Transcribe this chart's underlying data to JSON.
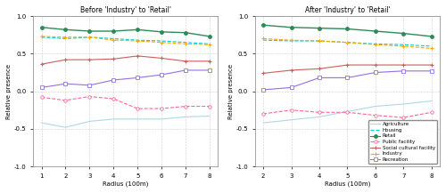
{
  "radius": [
    1,
    2,
    3,
    4,
    5,
    6,
    7,
    8
  ],
  "radius_after": [
    2,
    3,
    4,
    5,
    6,
    7,
    8
  ],
  "before": {
    "agriculture": [
      -0.42,
      -0.48,
      -0.4,
      -0.37,
      -0.37,
      -0.37,
      -0.34,
      -0.33
    ],
    "housing": [
      0.72,
      0.7,
      0.72,
      0.7,
      0.68,
      0.67,
      0.65,
      0.63
    ],
    "retail": [
      0.85,
      0.82,
      0.8,
      0.8,
      0.82,
      0.79,
      0.78,
      0.73
    ],
    "public_facility": [
      -0.08,
      -0.12,
      -0.07,
      -0.1,
      -0.23,
      -0.23,
      -0.2,
      -0.2
    ],
    "social_cultural": [
      0.36,
      0.42,
      0.42,
      0.43,
      0.47,
      0.44,
      0.4,
      0.4
    ],
    "industry": [
      0.73,
      0.72,
      0.72,
      0.68,
      0.67,
      0.65,
      0.63,
      0.62
    ],
    "recreation": [
      0.05,
      0.1,
      0.08,
      0.15,
      0.18,
      0.22,
      0.28,
      0.28
    ]
  },
  "after": {
    "agriculture": [
      -0.42,
      -0.38,
      -0.34,
      -0.27,
      -0.2,
      -0.17,
      -0.13
    ],
    "housing": [
      0.68,
      0.67,
      0.67,
      0.65,
      0.63,
      0.62,
      0.6
    ],
    "retail": [
      0.88,
      0.85,
      0.84,
      0.83,
      0.8,
      0.77,
      0.73
    ],
    "public_facility": [
      -0.3,
      -0.25,
      -0.28,
      -0.28,
      -0.32,
      -0.35,
      -0.28
    ],
    "social_cultural": [
      0.24,
      0.28,
      0.3,
      0.35,
      0.35,
      0.35,
      0.35
    ],
    "industry": [
      0.7,
      0.68,
      0.67,
      0.65,
      0.62,
      0.6,
      0.57
    ],
    "recreation": [
      0.02,
      0.05,
      0.18,
      0.18,
      0.25,
      0.27,
      0.27
    ]
  },
  "colors": {
    "agriculture": "#add8e6",
    "housing": "#00ced1",
    "retail": "#2e8b57",
    "public_facility": "#ff6699",
    "social_cultural": "#cd5c5c",
    "industry": "#ffa500",
    "recreation": "#9370db"
  },
  "title_before": "Before 'Industry' to 'Retail'",
  "title_after": "After 'Industry' to 'Retail'",
  "ylabel": "Relative presence",
  "xlabel": "Radius (100m)",
  "ylim": [
    -1.0,
    1.0
  ],
  "yticks": [
    -1.0,
    -0.5,
    0.0,
    0.5,
    1.0
  ],
  "xticks_before": [
    1,
    2,
    3,
    4,
    5,
    6,
    7,
    8
  ],
  "xticks_after": [
    2,
    3,
    4,
    5,
    6,
    7,
    8
  ],
  "legend_labels": [
    "Agriculture",
    "Housing",
    "Retail",
    "Public facility",
    "Social cultural facility",
    "Industry",
    "Recreation"
  ]
}
